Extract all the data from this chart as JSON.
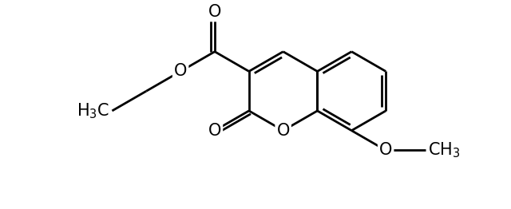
{
  "bg_color": "#ffffff",
  "line_color": "#000000",
  "line_width": 2.0,
  "figsize": [
    6.4,
    2.62
  ],
  "dpi": 100,
  "font_size": 14,
  "xlim": [
    0,
    640
  ],
  "ylim": [
    0,
    262
  ]
}
